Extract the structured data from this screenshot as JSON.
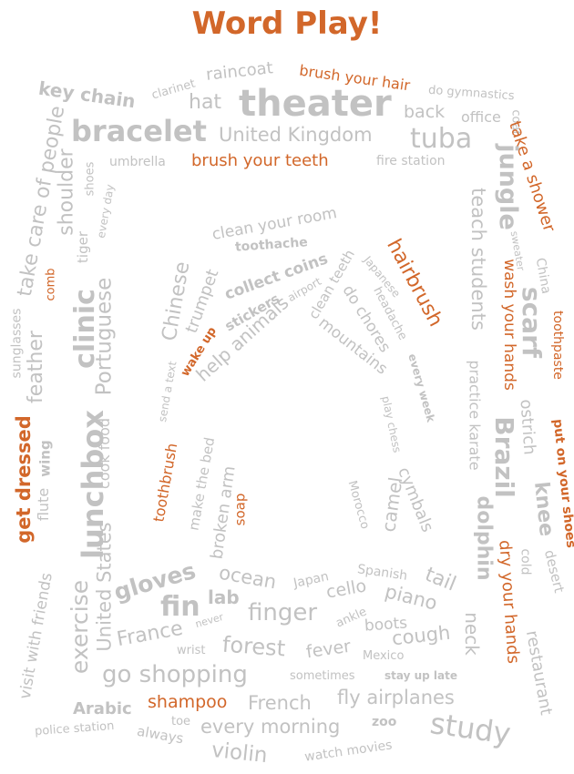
{
  "title": "Word Play!",
  "words": {
    "keychain": "key chain",
    "clarinet": "clarinet",
    "raincoat": "raincoat",
    "brushhair": "brush your hair",
    "hat": "hat",
    "theater": "theater",
    "back": "back",
    "gymnastics": "do gymnastics",
    "office": "office",
    "coat": "coat",
    "shower": "take a shower",
    "bracelet": "bracelet",
    "uk": "United Kingdom",
    "tuba": "tuba",
    "takecare": "take care of people",
    "shoulder": "shoulder",
    "shoes": "shoes",
    "everyday": "every day",
    "umbrella": "umbrella",
    "teeth": "brush your teeth",
    "firestation": "fire station",
    "jungle": "jungle",
    "teach": "teach students",
    "sweater": "sweater",
    "china": "China",
    "tiger": "tiger",
    "cleanroom": "clean your room",
    "toothache": "toothache",
    "hairbrush": "hairbrush",
    "comb": "comb",
    "collectcoins": "collect coins",
    "airport": "airport",
    "cleanteeth": "clean teeth",
    "japanese": "Japanese",
    "headache": "headache",
    "chinese": "Chinese",
    "trumpet": "trumpet",
    "stickers": "stickers",
    "helpanimals": "help animals",
    "dochores": "do chores",
    "mountains": "mountains",
    "wakeup": "wake up",
    "washhands": "wash your hands",
    "scarf": "scarf",
    "toothpaste": "toothpaste",
    "sunglasses": "sunglasses",
    "clinic": "clinic",
    "portuguese": "Portuguese",
    "feather": "feather",
    "sendtext": "send a text",
    "everyweek": "every week",
    "practicekarate": "practice karate",
    "ostrich": "ostrich",
    "brazil": "Brazil",
    "putshoes": "put on your shoes",
    "getdressed": "get dressed",
    "wing": "wing",
    "flute": "flute",
    "lunchbox": "lunchbox",
    "cookfood": "cook food",
    "toothbrush": "toothbrush",
    "makebed": "make the bed",
    "brokenarm": "broken arm",
    "soap": "soap",
    "playchess": "play chess",
    "morocco": "Morocco",
    "camel": "camel",
    "cymbals": "cymbals",
    "dolphin": "dolphin",
    "knee": "knee",
    "dryhands": "dry your hands",
    "cold": "cold",
    "desert": "desert",
    "visitfriends": "visit with friends",
    "exercise": "exercise",
    "us": "United States",
    "gloves": "gloves",
    "ocean": "ocean",
    "fin": "fin",
    "lab": "lab",
    "japan": "Japan",
    "spanish": "Spanish",
    "tail": "tail",
    "cello": "cello",
    "piano": "piano",
    "finger": "finger",
    "ankle": "ankle",
    "france": "France",
    "never": "never",
    "boots": "boots",
    "wrist": "wrist",
    "forest": "forest",
    "fever": "fever",
    "cough": "cough",
    "mexico": "Mexico",
    "neck": "neck",
    "restaurant": "restaurant",
    "goshopping": "go shopping",
    "sometimes": "sometimes",
    "stayuplate": "stay up late",
    "arabic": "Arabic",
    "shampoo": "shampoo",
    "french": "French",
    "flyairplanes": "fly airplanes",
    "policestation": "police station",
    "toe": "toe",
    "always": "always",
    "everymorning": "every morning",
    "zoo": "zoo",
    "study": "study",
    "violin": "violin",
    "watchmovies": "watch movies"
  }
}
